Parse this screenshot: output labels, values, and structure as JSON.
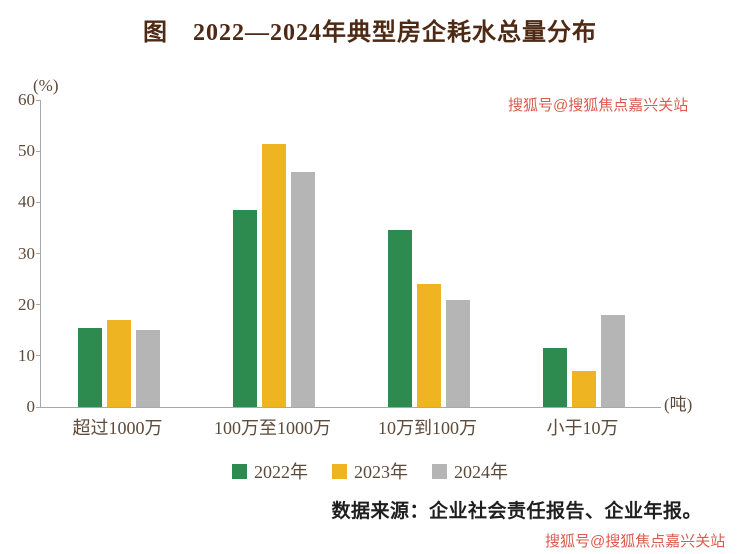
{
  "chart_data": {
    "type": "bar",
    "title": "图　2022—2024年典型房企耗水总量分布",
    "ylabel_unit": "(%)",
    "xlabel_unit": "(吨)",
    "categories": [
      "超过1000万",
      "100万至1000万",
      "10万到100万",
      "小于10万"
    ],
    "series": [
      {
        "name": "2022年",
        "color": "#2e8b4f",
        "values": [
          15.5,
          38.5,
          34.5,
          11.5
        ]
      },
      {
        "name": "2023年",
        "color": "#eeb422",
        "values": [
          17,
          51.5,
          24,
          7
        ]
      },
      {
        "name": "2024年",
        "color": "#b5b5b5",
        "values": [
          15,
          46,
          21,
          18
        ]
      }
    ],
    "ylim": [
      0,
      60
    ],
    "yticks": [
      0,
      10,
      20,
      30,
      40,
      50,
      60
    ],
    "grid": false,
    "legend_position": "bottom"
  },
  "source": "数据来源：企业社会责任报告、企业年报。",
  "watermark": "搜狐号@搜狐焦点嘉兴关站"
}
